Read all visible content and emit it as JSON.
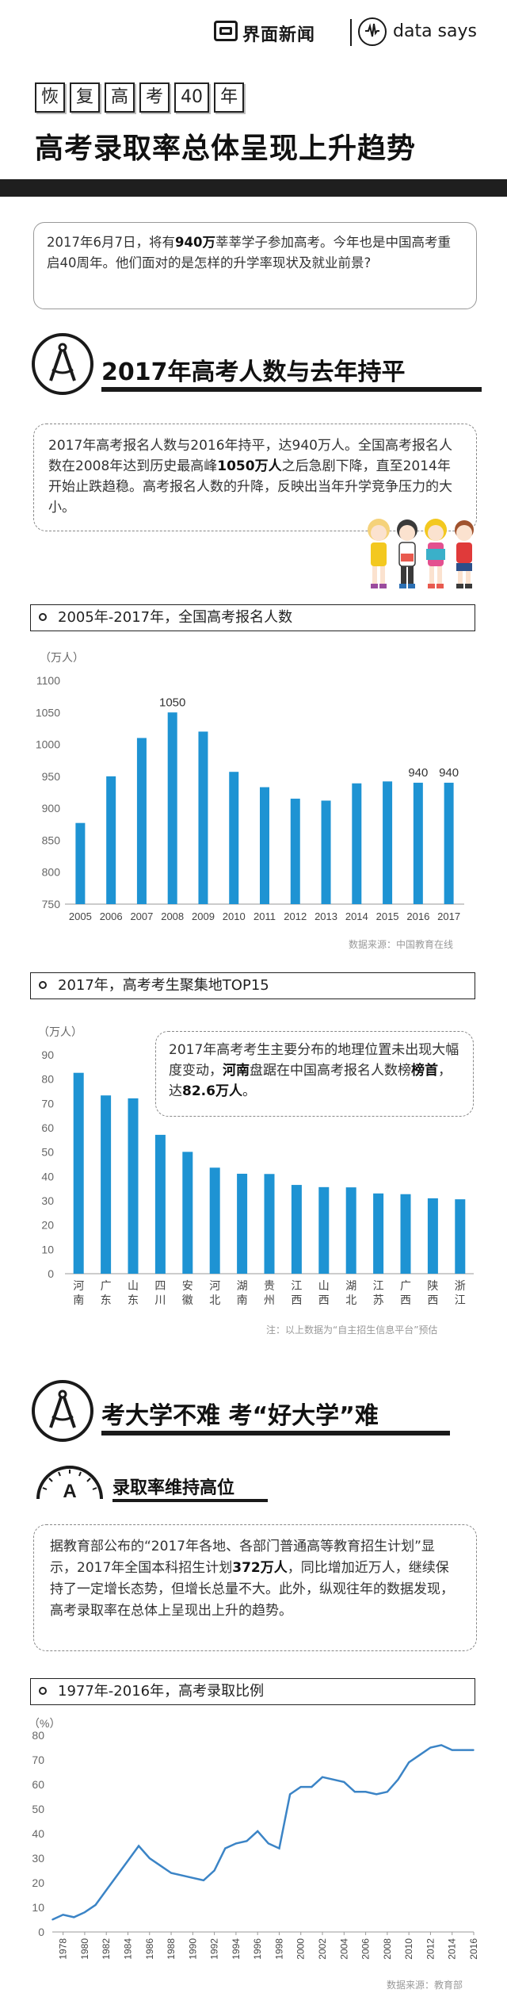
{
  "brand": {
    "name": "界面新闻",
    "partner": "data says"
  },
  "kicker_chars": [
    "恢",
    "复",
    "高",
    "考",
    "40",
    "年"
  ],
  "title": "高考录取率总体呈现上升趋势",
  "intro": {
    "pre": "2017年6月7日，将有",
    "bold": "940万",
    "post": "莘莘学子参加高考。今年也是中国高考重启40周年。他们面对的是怎样的升学率现状及就业前景?"
  },
  "section1": {
    "title": "2017年高考人数与去年持平",
    "icon": "compass-icon",
    "paragraph_pre": "2017年高考报名人数与2016年持平，达940万人。全国高考报名人数在2008年达到历史最高峰",
    "paragraph_bold": "1050万人",
    "paragraph_post": "之后急剧下降，直至2014年开始止跌趋稳。高考报名人数的升降，反映出当年升学竞争压力的大小。"
  },
  "chart1_heading": "2005年-2017年，全国高考报名人数",
  "chart1_source": "数据来源：中国教育在线",
  "chart2_heading": "2017年，高考考生聚集地TOP15",
  "chart2_callout": {
    "pre": "2017年高考考生主要分布的地理位置未出现大幅度变动，",
    "bold1": "河南",
    "mid": "盘踞在中国高考报名人数榜",
    "bold2": "榜首",
    "mid2": "，达",
    "bold3": "82.6万人",
    "post": "。"
  },
  "chart2_source": "注：以上数据为“自主招生信息平台”预估",
  "section2": {
    "title": "考大学不难 考“好大学”难",
    "icon": "compass-icon",
    "sub_icon": "grade-a-gauge-icon",
    "sub_title": "录取率维持高位",
    "paragraph_pre": "据教育部公布的“2017年各地、各部门普通高等教育招生计划”显示，2017年全国本科招生计划",
    "paragraph_bold": "372万人",
    "paragraph_post": "，同比增加近万人，继续保持了一定增长态势，但增长总量不大。此外，纵观往年的数据发现，高考录取率在总体上呈现出上升的趋势。"
  },
  "chart3_heading": "1977年-2016年，高考录取比例",
  "chart3_source": "数据来源：教育部",
  "colors": {
    "bar": "#1e93d3",
    "line": "#3b84c6",
    "ink": "#1a1a1a"
  },
  "chart_data": [
    {
      "type": "bar",
      "unit": "（万人）",
      "categories": [
        "2005",
        "2006",
        "2007",
        "2008",
        "2009",
        "2010",
        "2011",
        "2012",
        "2013",
        "2014",
        "2015",
        "2016",
        "2017"
      ],
      "values": [
        877,
        950,
        1010,
        1050,
        1020,
        957,
        933,
        915,
        912,
        939,
        942,
        940,
        940
      ],
      "data_labels": {
        "2008": "1050",
        "2016": "940",
        "2017": "940"
      },
      "ylim": [
        750,
        1100
      ],
      "yticks": [
        750,
        800,
        850,
        900,
        950,
        1000,
        1050,
        1100
      ],
      "grid": false
    },
    {
      "type": "bar",
      "unit": "（万人）",
      "categories": [
        "河南",
        "广东",
        "山东",
        "四川",
        "安徽",
        "河北",
        "湖南",
        "贵州",
        "江西",
        "山西",
        "湖北",
        "江苏",
        "广西",
        "陕西",
        "浙江"
      ],
      "values": [
        82.6,
        73.3,
        72.1,
        57.1,
        50.1,
        43.6,
        41.1,
        41.0,
        36.5,
        35.6,
        35.5,
        33.0,
        32.7,
        31.0,
        30.6
      ],
      "ylim": [
        0,
        90
      ],
      "yticks": [
        0,
        10,
        20,
        30,
        40,
        50,
        60,
        70,
        80,
        90
      ],
      "grid": false
    },
    {
      "type": "line",
      "unit": "（%）",
      "x": [
        1977,
        1978,
        1979,
        1980,
        1981,
        1982,
        1983,
        1984,
        1985,
        1986,
        1987,
        1988,
        1989,
        1990,
        1991,
        1992,
        1993,
        1994,
        1995,
        1996,
        1997,
        1998,
        1999,
        2000,
        2001,
        2002,
        2003,
        2004,
        2005,
        2006,
        2007,
        2008,
        2009,
        2010,
        2011,
        2012,
        2013,
        2014,
        2015,
        2016
      ],
      "y": [
        5,
        7,
        6,
        8,
        11,
        17,
        23,
        29,
        35,
        30,
        27,
        24,
        23,
        22,
        21,
        25,
        34,
        36,
        37,
        41,
        36,
        34,
        56,
        59,
        59,
        63,
        62,
        61,
        57,
        57,
        56,
        57,
        62,
        69,
        72,
        75,
        76,
        74,
        74,
        74
      ],
      "xticks": [
        "1978",
        "1980",
        "1982",
        "1984",
        "1986",
        "1988",
        "1990",
        "1992",
        "1994",
        "1996",
        "1998",
        "2000",
        "2002",
        "2004",
        "2006",
        "2008",
        "2010",
        "2012",
        "2014",
        "2016"
      ],
      "ylim": [
        0,
        80
      ],
      "yticks": [
        0,
        10,
        20,
        30,
        40,
        50,
        60,
        70,
        80
      ],
      "grid": false
    }
  ]
}
